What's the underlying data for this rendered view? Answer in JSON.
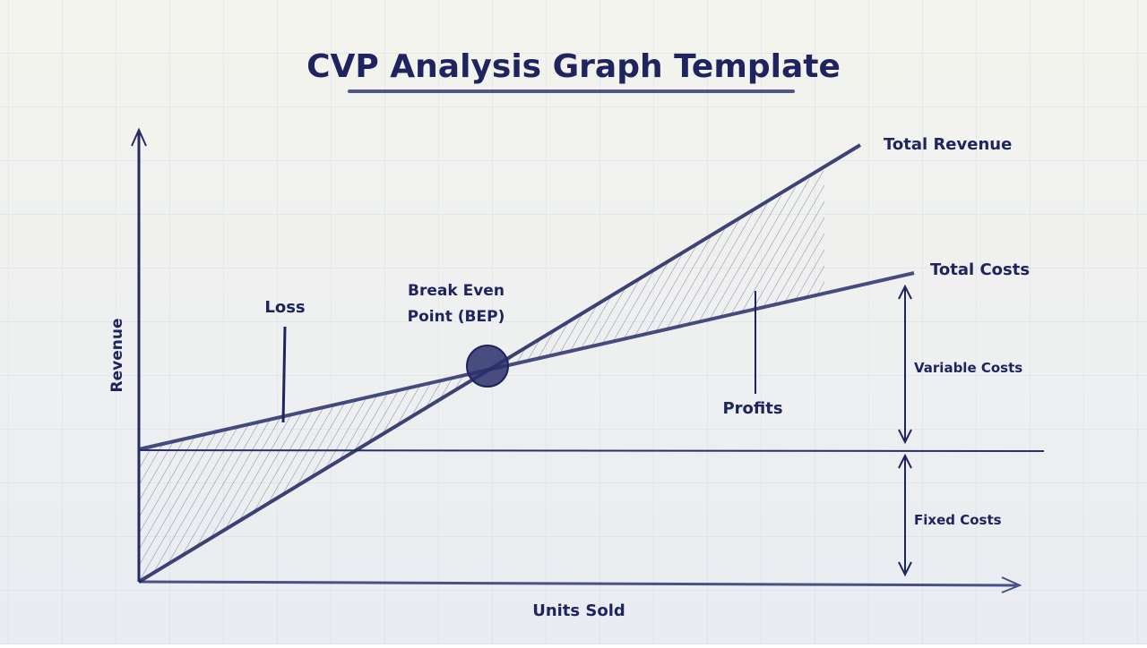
{
  "header": {
    "title": "CVP Analysis Graph Template"
  },
  "diagram": {
    "lines": {
      "total_revenue": "Total Revenue",
      "total_costs": "Total Costs"
    },
    "regions": {
      "loss": "Loss",
      "profits": "Profits"
    },
    "break_even": [
      "Break Even",
      "Point (BEP)"
    ],
    "axes": {
      "x": "Units Sold",
      "y": "Revenue"
    },
    "cost_parts": {
      "variable": "Variable Costs",
      "fixed": "Fixed Costs"
    }
  }
}
